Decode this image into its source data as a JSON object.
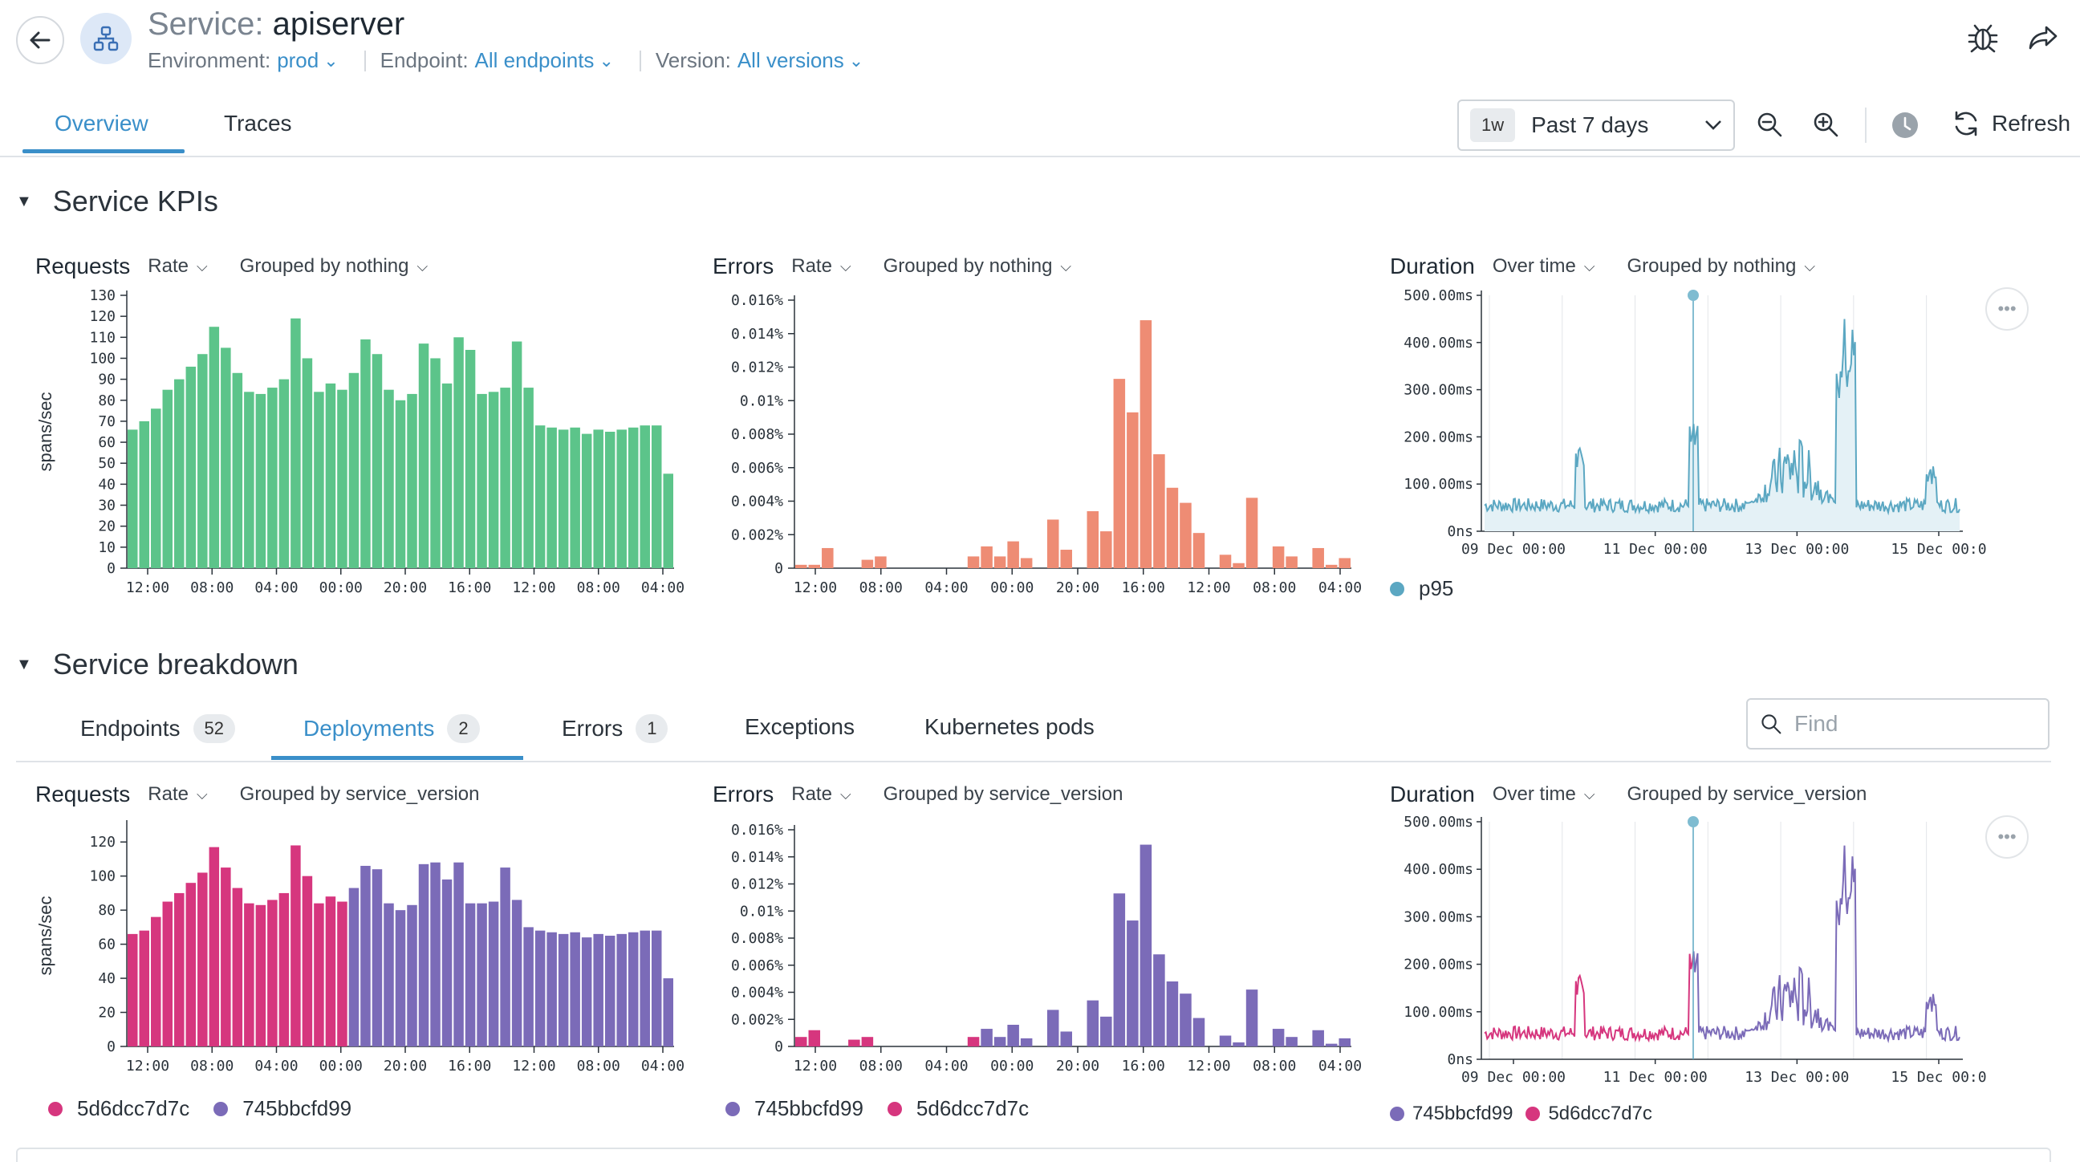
{
  "header": {
    "title_prefix": "Service:",
    "title_name": "apiserver",
    "filters": [
      {
        "label": "Environment:",
        "value": "prod"
      },
      {
        "label": "Endpoint:",
        "value": "All endpoints"
      },
      {
        "label": "Version:",
        "value": "All versions"
      }
    ]
  },
  "tabs": [
    "Overview",
    "Traces"
  ],
  "time": {
    "pill": "1w",
    "range": "Past 7 days",
    "refresh": "Refresh"
  },
  "kpis": {
    "title": "Service KPIs",
    "requests": {
      "name": "Requests",
      "mode": "Rate",
      "group": "Grouped by nothing"
    },
    "errors": {
      "name": "Errors",
      "mode": "Rate",
      "group": "Grouped by nothing"
    },
    "duration": {
      "name": "Duration",
      "mode": "Over time",
      "group": "Grouped by nothing",
      "legend": "p95"
    }
  },
  "breakdown": {
    "title": "Service breakdown",
    "tabs": [
      {
        "label": "Endpoints",
        "count": "52"
      },
      {
        "label": "Deployments",
        "count": "2"
      },
      {
        "label": "Errors",
        "count": "1"
      },
      {
        "label": "Exceptions"
      },
      {
        "label": "Kubernetes pods"
      }
    ],
    "find_placeholder": "Find",
    "requests": {
      "name": "Requests",
      "mode": "Rate",
      "group": "Grouped by service_version",
      "legend": [
        "5d6dcc7d7c",
        "745bbcfd99"
      ]
    },
    "errors": {
      "name": "Errors",
      "mode": "Rate",
      "group": "Grouped by service_version",
      "legend": [
        "745bbcfd99",
        "5d6dcc7d7c"
      ]
    },
    "duration": {
      "name": "Duration",
      "mode": "Over time",
      "group": "Grouped by service_version",
      "legend": [
        "745bbcfd99",
        "5d6dcc7d7c"
      ]
    }
  },
  "colors": {
    "accent": "#3a8fc9",
    "green": "#5cc48a",
    "salmon": "#ee8c74",
    "pink": "#d6367e",
    "purple": "#7b6bb8",
    "line_blue": "#5ba7c2"
  },
  "chart_data": [
    {
      "id": "kpi-requests",
      "type": "bar",
      "title": "Requests",
      "ylabel": "spans/sec",
      "ylim": [
        0,
        130
      ],
      "yticks": [
        0,
        10,
        20,
        30,
        40,
        50,
        60,
        70,
        80,
        90,
        100,
        110,
        120,
        130
      ],
      "xticks": [
        "12:00",
        "08:00",
        "04:00",
        "00:00",
        "20:00",
        "16:00",
        "12:00",
        "08:00",
        "04:00"
      ],
      "values": [
        66,
        70,
        76,
        85,
        90,
        96,
        102,
        115,
        105,
        93,
        84,
        83,
        86,
        90,
        119,
        100,
        84,
        88,
        85,
        93,
        109,
        102,
        85,
        80,
        83,
        107,
        100,
        88,
        110,
        104,
        83,
        84,
        86,
        108,
        86,
        68,
        67,
        66,
        67,
        64,
        66,
        65,
        66,
        67,
        68,
        68,
        45
      ]
    },
    {
      "id": "kpi-errors",
      "type": "bar",
      "title": "Errors",
      "ylim": [
        0,
        0.016
      ],
      "yticks": [
        "0",
        "0.002%",
        "0.004%",
        "0.006%",
        "0.008%",
        "0.01%",
        "0.012%",
        "0.014%",
        "0.016%"
      ],
      "xticks": [
        "12:00",
        "08:00",
        "04:00",
        "00:00",
        "20:00",
        "16:00",
        "12:00",
        "08:00",
        "04:00"
      ],
      "values": [
        0.0002,
        0.0002,
        0.0012,
        0,
        0,
        0.0005,
        0.0007,
        0,
        0,
        0,
        0,
        0,
        0,
        0.0007,
        0.0013,
        0.0007,
        0.0016,
        0.0006,
        0,
        0.0029,
        0.0011,
        0,
        0.0034,
        0.0022,
        0.0113,
        0.0093,
        0.0148,
        0.0068,
        0.0048,
        0.0039,
        0.0021,
        0,
        0.0008,
        0.0003,
        0.0042,
        0,
        0.0013,
        0.0007,
        0,
        0.0012,
        0.0002,
        0.0006
      ]
    },
    {
      "id": "kpi-duration",
      "type": "line",
      "title": "Duration",
      "ylim": [
        0,
        500
      ],
      "yticks": [
        "0ns",
        "100.00ms",
        "200.00ms",
        "300.00ms",
        "400.00ms",
        "500.00ms"
      ],
      "xticks": [
        "09 Dec 00:00",
        "11 Dec 00:00",
        "13 Dec 00:00",
        "15 Dec 00:0"
      ],
      "series": [
        {
          "name": "p95"
        }
      ]
    },
    {
      "id": "bd-requests",
      "type": "bar",
      "title": "Requests",
      "ylabel": "spans/sec",
      "ylim": [
        0,
        130
      ],
      "yticks": [
        0,
        20,
        40,
        60,
        80,
        100,
        120
      ],
      "xticks": [
        "12:00",
        "08:00",
        "04:00",
        "00:00",
        "20:00",
        "16:00",
        "12:00",
        "08:00",
        "04:00"
      ],
      "split_index": 19,
      "series": [
        {
          "name": "5d6dcc7d7c"
        },
        {
          "name": "745bbcfd99"
        }
      ],
      "values": [
        66,
        68,
        76,
        85,
        90,
        96,
        102,
        117,
        105,
        93,
        84,
        83,
        86,
        90,
        118,
        100,
        84,
        88,
        85,
        93,
        106,
        104,
        84,
        80,
        83,
        107,
        108,
        98,
        108,
        84,
        84,
        85,
        105,
        86,
        70,
        68,
        67,
        66,
        67,
        64,
        66,
        65,
        66,
        67,
        68,
        68,
        40
      ]
    },
    {
      "id": "bd-errors",
      "type": "bar",
      "title": "Errors",
      "ylim": [
        0,
        0.016
      ],
      "yticks": [
        "0",
        "0.002%",
        "0.004%",
        "0.006%",
        "0.008%",
        "0.01%",
        "0.012%",
        "0.014%",
        "0.016%"
      ],
      "xticks": [
        "12:00",
        "08:00",
        "04:00",
        "00:00",
        "20:00",
        "16:00",
        "12:00",
        "08:00",
        "04:00"
      ],
      "series": [
        {
          "name": "745bbcfd99"
        },
        {
          "name": "5d6dcc7d7c"
        }
      ],
      "values": [
        0.0007,
        0.0012,
        0,
        0,
        0.0005,
        0.0007,
        0,
        0,
        0,
        0,
        0,
        0,
        0,
        0.0007,
        0.0013,
        0.0007,
        0.0016,
        0.0006,
        0,
        0.0027,
        0.0011,
        0,
        0.0034,
        0.0022,
        0.0113,
        0.0093,
        0.0149,
        0.0068,
        0.0048,
        0.0039,
        0.0021,
        0,
        0.0008,
        0.0003,
        0.0042,
        0,
        0.0013,
        0.0007,
        0,
        0.0012,
        0.0002,
        0.0006
      ]
    },
    {
      "id": "bd-duration",
      "type": "line",
      "title": "Duration",
      "ylim": [
        0,
        500
      ],
      "yticks": [
        "0ns",
        "100.00ms",
        "200.00ms",
        "300.00ms",
        "400.00ms",
        "500.00ms"
      ],
      "xticks": [
        "09 Dec 00:00",
        "11 Dec 00:00",
        "13 Dec 00:00",
        "15 Dec 00:0"
      ],
      "series": [
        {
          "name": "745bbcfd99"
        },
        {
          "name": "5d6dcc7d7c"
        }
      ]
    }
  ]
}
